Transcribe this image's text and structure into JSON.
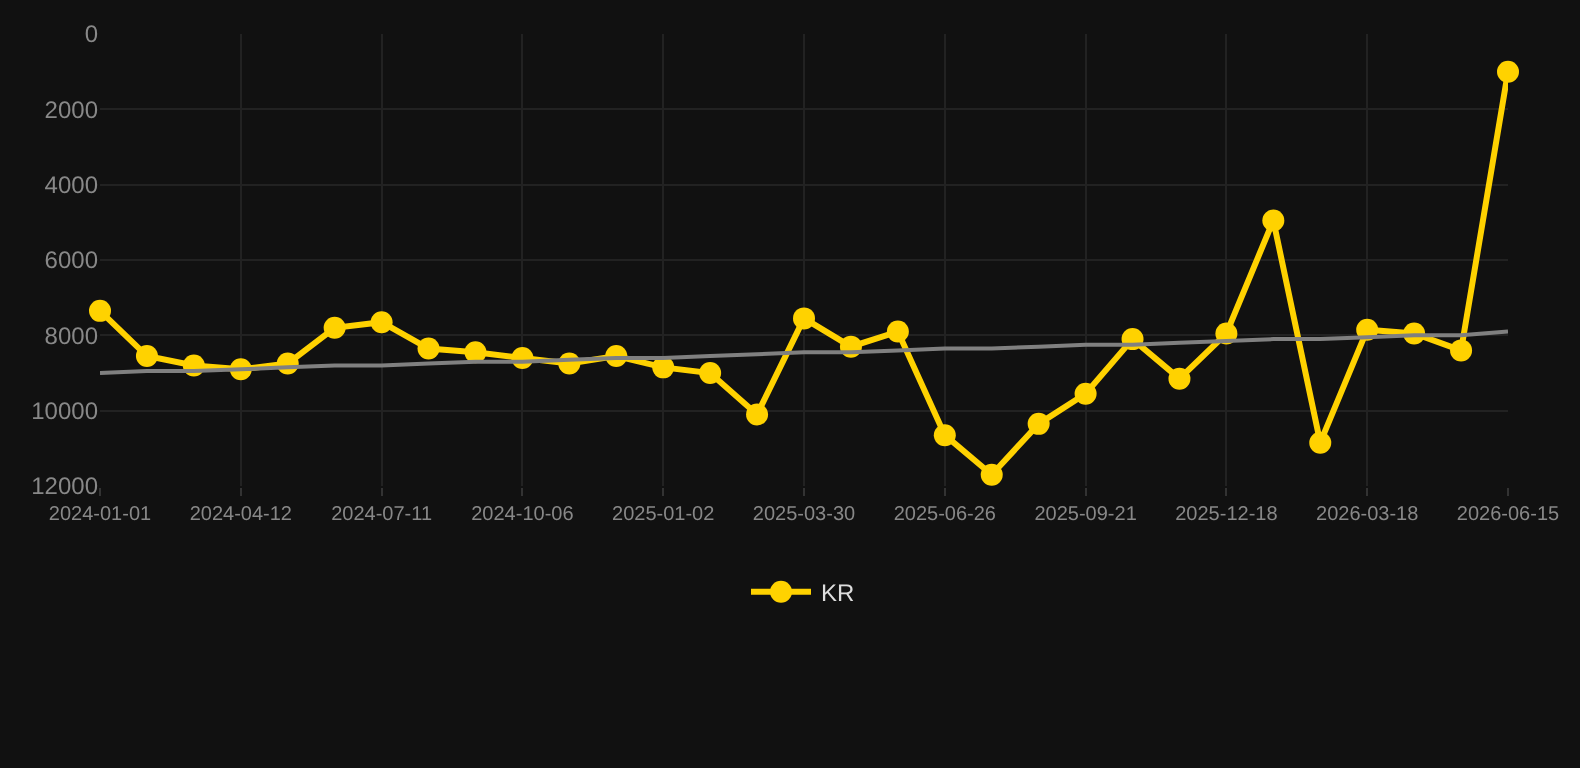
{
  "chart_data": {
    "type": "line",
    "categories": [
      "2024-01-01",
      null,
      null,
      "2024-04-12",
      null,
      null,
      "2024-07-11",
      null,
      null,
      "2024-10-06",
      null,
      null,
      "2025-01-02",
      null,
      null,
      "2025-03-30",
      null,
      null,
      "2025-06-26",
      null,
      null,
      "2025-09-21",
      null,
      null,
      "2025-12-18",
      null,
      null,
      "2026-03-18",
      null,
      null,
      "2026-06-15"
    ],
    "series": [
      {
        "name": "KR",
        "color": "#ffd200",
        "marker": "circle",
        "values": [
          7350,
          8550,
          8800,
          8900,
          8750,
          7800,
          7650,
          8350,
          8450,
          8600,
          8750,
          8550,
          8850,
          9000,
          10100,
          7550,
          8300,
          7900,
          10650,
          11700,
          10350,
          9550,
          8100,
          9150,
          7950,
          4950,
          10850,
          7850,
          7950,
          8400,
          1000
        ]
      },
      {
        "type": "line",
        "color": "#808080",
        "marker": "none",
        "values": [
          9000,
          8950,
          8950,
          8900,
          8850,
          8800,
          8800,
          8750,
          8700,
          8700,
          8650,
          8600,
          8600,
          8550,
          8500,
          8450,
          8450,
          8400,
          8350,
          8350,
          8300,
          8250,
          8250,
          8200,
          8150,
          8100,
          8100,
          8050,
          8000,
          8000,
          7900
        ]
      }
    ],
    "ylim": [
      12000,
      0
    ],
    "yticks": [
      0,
      2000,
      4000,
      6000,
      8000,
      10000,
      12000
    ],
    "grid": true,
    "legend": "bottom"
  }
}
